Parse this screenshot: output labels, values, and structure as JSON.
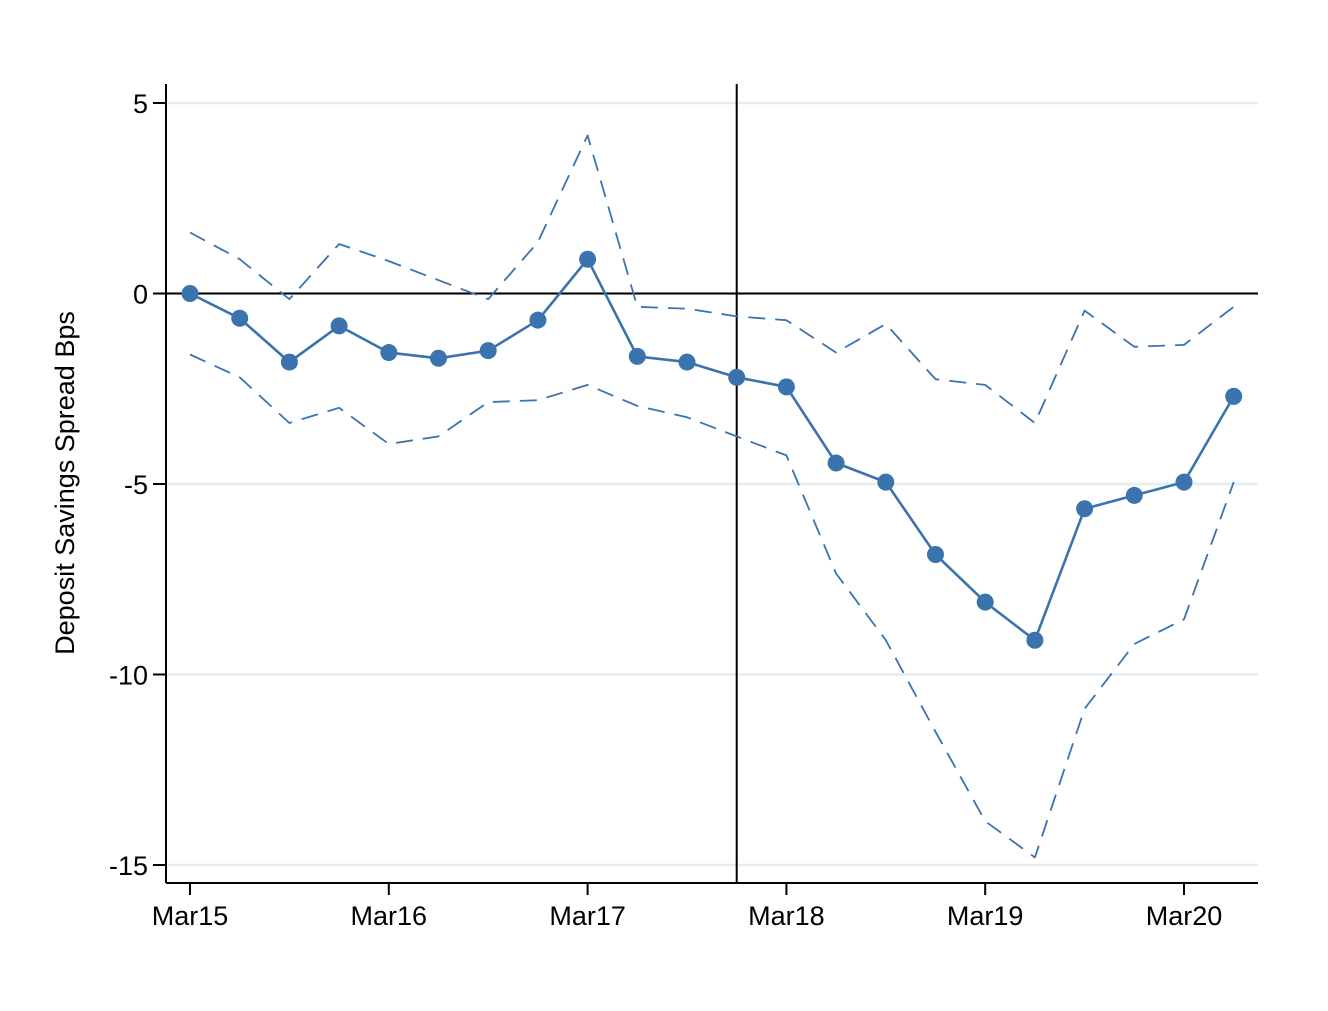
{
  "chart_data": {
    "type": "line",
    "title": "",
    "xlabel": "",
    "ylabel": "Deposit Savings Spread Bps",
    "x_ticks": [
      "Mar15",
      "Mar16",
      "Mar17",
      "Mar18",
      "Mar19",
      "Mar20"
    ],
    "y_ticks": [
      5,
      0,
      -5,
      -10,
      -15
    ],
    "ylim": [
      -15.5,
      5.5
    ],
    "grid": true,
    "legend": "none",
    "reference_lines": {
      "horizontal_y": 0,
      "vertical_x": "Dec17"
    },
    "x": [
      "Mar15",
      "Jun15",
      "Sep15",
      "Dec15",
      "Mar16",
      "Jun16",
      "Sep16",
      "Dec16",
      "Mar17",
      "Jun17",
      "Sep17",
      "Dec17",
      "Mar18",
      "Jun18",
      "Sep18",
      "Dec18",
      "Mar19",
      "Jun19",
      "Sep19",
      "Dec19",
      "Mar20",
      "Jun20"
    ],
    "series": [
      {
        "role": "estimate",
        "style": "solid-markers",
        "color": "#3a73ae",
        "values": [
          0,
          -0.65,
          -1.8,
          -0.85,
          -1.55,
          -1.7,
          -1.5,
          -0.7,
          0.9,
          -1.65,
          -1.8,
          -2.2,
          -2.45,
          -4.45,
          -4.95,
          -6.85,
          -8.1,
          -9.1,
          -5.65,
          -5.3,
          -4.95,
          -2.7
        ]
      },
      {
        "role": "upper-bound",
        "style": "dashed",
        "color": "#3a73ae",
        "values": [
          1.6,
          0.9,
          -0.15,
          1.3,
          0.85,
          0.35,
          -0.15,
          1.35,
          4.15,
          -0.35,
          -0.4,
          -0.6,
          -0.7,
          -1.55,
          -0.8,
          -2.25,
          -2.4,
          -3.4,
          -0.45,
          -1.4,
          -1.35,
          -0.35
        ]
      },
      {
        "role": "lower-bound",
        "style": "dashed",
        "color": "#3a73ae",
        "values": [
          -1.6,
          -2.2,
          -3.4,
          -3.0,
          -3.95,
          -3.75,
          -2.85,
          -2.8,
          -2.4,
          -2.95,
          -3.25,
          -3.75,
          -4.25,
          -7.35,
          -9.1,
          -11.5,
          -13.85,
          -14.8,
          -10.9,
          -9.2,
          -8.55,
          -4.95
        ]
      }
    ],
    "colors": {
      "series": "#3a73ae",
      "grid": "#e4eeee",
      "axis": "#000000"
    }
  }
}
